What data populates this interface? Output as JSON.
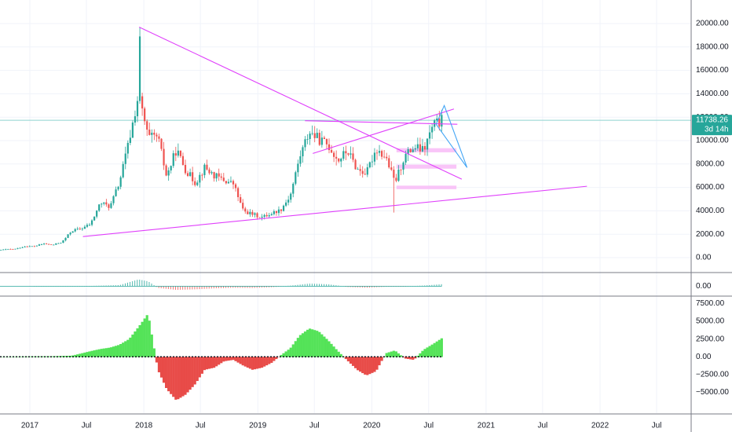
{
  "colors": {
    "up": "#26a69a",
    "down": "#ef5350",
    "trendline": "#e040fb",
    "projection": "#42a5f5",
    "zone": "#f8bbf7",
    "price_line": "#8fd3cf",
    "price_tag": "#26a69a",
    "grid": "#f0f3fa",
    "separator": "#787b86",
    "hist_up": "#43e047",
    "hist_down": "#e53935",
    "hist_dark_up": "#2e7d32",
    "hist_dark_down": "#7b1f1f"
  },
  "chart_data": [
    {
      "type": "candlestick",
      "title": "",
      "x_labels": [
        "2017",
        "Jul",
        "2018",
        "Jul",
        "2019",
        "Jul",
        "2020",
        "Jul",
        "2021",
        "Jul",
        "2022",
        "Jul"
      ],
      "x_label_dates": [
        "2017-01",
        "2017-07",
        "2018-01",
        "2018-07",
        "2019-01",
        "2019-07",
        "2020-01",
        "2020-07",
        "2021-01",
        "2021-07",
        "2022-01",
        "2022-07"
      ],
      "y_ticks": [
        "20000.00",
        "18000.00",
        "16000.00",
        "14000.00",
        "12000.00",
        "10000.00",
        "8000.00",
        "6000.00",
        "4000.00",
        "2000.00",
        "0.00"
      ],
      "ylim": [
        -500,
        21200
      ],
      "last_price": "11738.26",
      "last_price_value": 11738.26,
      "countdown": "3d 14h",
      "series_close_by_month": [
        [
          "2016-09",
          600
        ],
        [
          "2016-10",
          700
        ],
        [
          "2016-11",
          740
        ],
        [
          "2016-12",
          960
        ],
        [
          "2017-01",
          970
        ],
        [
          "2017-02",
          1190
        ],
        [
          "2017-03",
          1080
        ],
        [
          "2017-04",
          1350
        ],
        [
          "2017-05",
          2300
        ],
        [
          "2017-06",
          2480
        ],
        [
          "2017-07",
          2880
        ],
        [
          "2017-08",
          4700
        ],
        [
          "2017-09",
          4340
        ],
        [
          "2017-10",
          6450
        ],
        [
          "2017-11",
          10000
        ],
        [
          "2017-12",
          13900
        ],
        [
          "2018-01",
          10200
        ],
        [
          "2018-02",
          10300
        ],
        [
          "2018-03",
          6900
        ],
        [
          "2018-04",
          9250
        ],
        [
          "2018-05",
          7500
        ],
        [
          "2018-06",
          6400
        ],
        [
          "2018-07",
          7700
        ],
        [
          "2018-08",
          7000
        ],
        [
          "2018-09",
          6600
        ],
        [
          "2018-10",
          6300
        ],
        [
          "2018-11",
          4000
        ],
        [
          "2018-12",
          3700
        ],
        [
          "2019-01",
          3450
        ],
        [
          "2019-02",
          3800
        ],
        [
          "2019-03",
          4100
        ],
        [
          "2019-04",
          5300
        ],
        [
          "2019-05",
          8600
        ],
        [
          "2019-06",
          10800
        ],
        [
          "2019-07",
          10100
        ],
        [
          "2019-08",
          9600
        ],
        [
          "2019-09",
          8300
        ],
        [
          "2019-10",
          9150
        ],
        [
          "2019-11",
          7550
        ],
        [
          "2019-12",
          7200
        ],
        [
          "2020-01",
          9350
        ],
        [
          "2020-02",
          8550
        ],
        [
          "2020-03",
          6400
        ],
        [
          "2020-04",
          8650
        ],
        [
          "2020-05",
          9450
        ],
        [
          "2020-06",
          9140
        ],
        [
          "2020-07",
          11300
        ],
        [
          "2020-08",
          11738
        ]
      ],
      "trendlines": [
        {
          "from": [
            "2017-12-17",
            19700
          ],
          "to": [
            "2020-10-15",
            6700
          ]
        },
        {
          "from": [
            "2017-06-20",
            1800
          ],
          "to": [
            "2021-11-20",
            6100
          ]
        },
        {
          "from": [
            "2019-06-01",
            11700
          ],
          "to": [
            "2020-10-01",
            11400
          ]
        },
        {
          "from": [
            "2019-06-26",
            8900
          ],
          "to": [
            "2020-09-20",
            12700
          ]
        }
      ],
      "projection": [
        [
          "2020-07-25",
          11400
        ],
        [
          "2020-08-20",
          13000
        ],
        [
          "2020-11-01",
          7700
        ],
        [
          "2020-07-25",
          11400
        ]
      ],
      "zones": [
        {
          "from": "2020-03-20",
          "to": "2020-09-28",
          "y0": 9000,
          "y1": 9350
        },
        {
          "from": "2020-03-20",
          "to": "2020-09-28",
          "y0": 7600,
          "y1": 7950
        },
        {
          "from": "2020-03-20",
          "to": "2020-09-28",
          "y0": 5850,
          "y1": 6150
        }
      ]
    },
    {
      "type": "histogram",
      "title": "",
      "y_ticks": [
        "0.00"
      ],
      "ylim": [
        -1000,
        1500
      ],
      "values_by_month": [
        [
          "2017-01",
          5
        ],
        [
          "2017-04",
          15
        ],
        [
          "2017-07",
          40
        ],
        [
          "2017-10",
          150
        ],
        [
          "2017-12",
          900
        ],
        [
          "2018-01",
          650
        ],
        [
          "2018-02",
          -200
        ],
        [
          "2018-04",
          -450
        ],
        [
          "2018-06",
          -380
        ],
        [
          "2018-08",
          -250
        ],
        [
          "2018-10",
          -170
        ],
        [
          "2018-12",
          -200
        ],
        [
          "2019-02",
          -90
        ],
        [
          "2019-04",
          80
        ],
        [
          "2019-06",
          350
        ],
        [
          "2019-08",
          260
        ],
        [
          "2019-10",
          -70
        ],
        [
          "2019-12",
          -160
        ],
        [
          "2020-02",
          -40
        ],
        [
          "2020-04",
          -30
        ],
        [
          "2020-06",
          90
        ],
        [
          "2020-08",
          280
        ]
      ]
    },
    {
      "type": "histogram",
      "title": "",
      "y_ticks": [
        "7500.00",
        "5000.00",
        "2500.00",
        "0.00",
        "−2500.00",
        "−5000.00"
      ],
      "ylim": [
        -7500,
        8000
      ],
      "values_by_month": [
        [
          "2016-09",
          20
        ],
        [
          "2016-11",
          30
        ],
        [
          "2017-01",
          60
        ],
        [
          "2017-03",
          80
        ],
        [
          "2017-05",
          150
        ],
        [
          "2017-07",
          800
        ],
        [
          "2017-08",
          1100
        ],
        [
          "2017-09",
          1300
        ],
        [
          "2017-10",
          1700
        ],
        [
          "2017-11",
          2500
        ],
        [
          "2017-12",
          4200
        ],
        [
          "2018-01",
          6100
        ],
        [
          "2018-02",
          -1800
        ],
        [
          "2018-03",
          -4500
        ],
        [
          "2018-04",
          -6100
        ],
        [
          "2018-05",
          -5300
        ],
        [
          "2018-06",
          -3800
        ],
        [
          "2018-07",
          -1800
        ],
        [
          "2018-08",
          -1500
        ],
        [
          "2018-09",
          -600
        ],
        [
          "2018-10",
          -400
        ],
        [
          "2018-11",
          -1200
        ],
        [
          "2018-12",
          -1800
        ],
        [
          "2019-01",
          -1500
        ],
        [
          "2019-02",
          -800
        ],
        [
          "2019-03",
          200
        ],
        [
          "2019-04",
          1200
        ],
        [
          "2019-05",
          3000
        ],
        [
          "2019-06",
          4000
        ],
        [
          "2019-07",
          3600
        ],
        [
          "2019-08",
          2300
        ],
        [
          "2019-09",
          800
        ],
        [
          "2019-10",
          -500
        ],
        [
          "2019-11",
          -1800
        ],
        [
          "2019-12",
          -2600
        ],
        [
          "2020-01",
          -2000
        ],
        [
          "2020-02",
          500
        ],
        [
          "2020-03",
          900
        ],
        [
          "2020-04",
          -200
        ],
        [
          "2020-05",
          -400
        ],
        [
          "2020-06",
          1000
        ],
        [
          "2020-07",
          1800
        ],
        [
          "2020-08",
          2700
        ]
      ]
    }
  ]
}
